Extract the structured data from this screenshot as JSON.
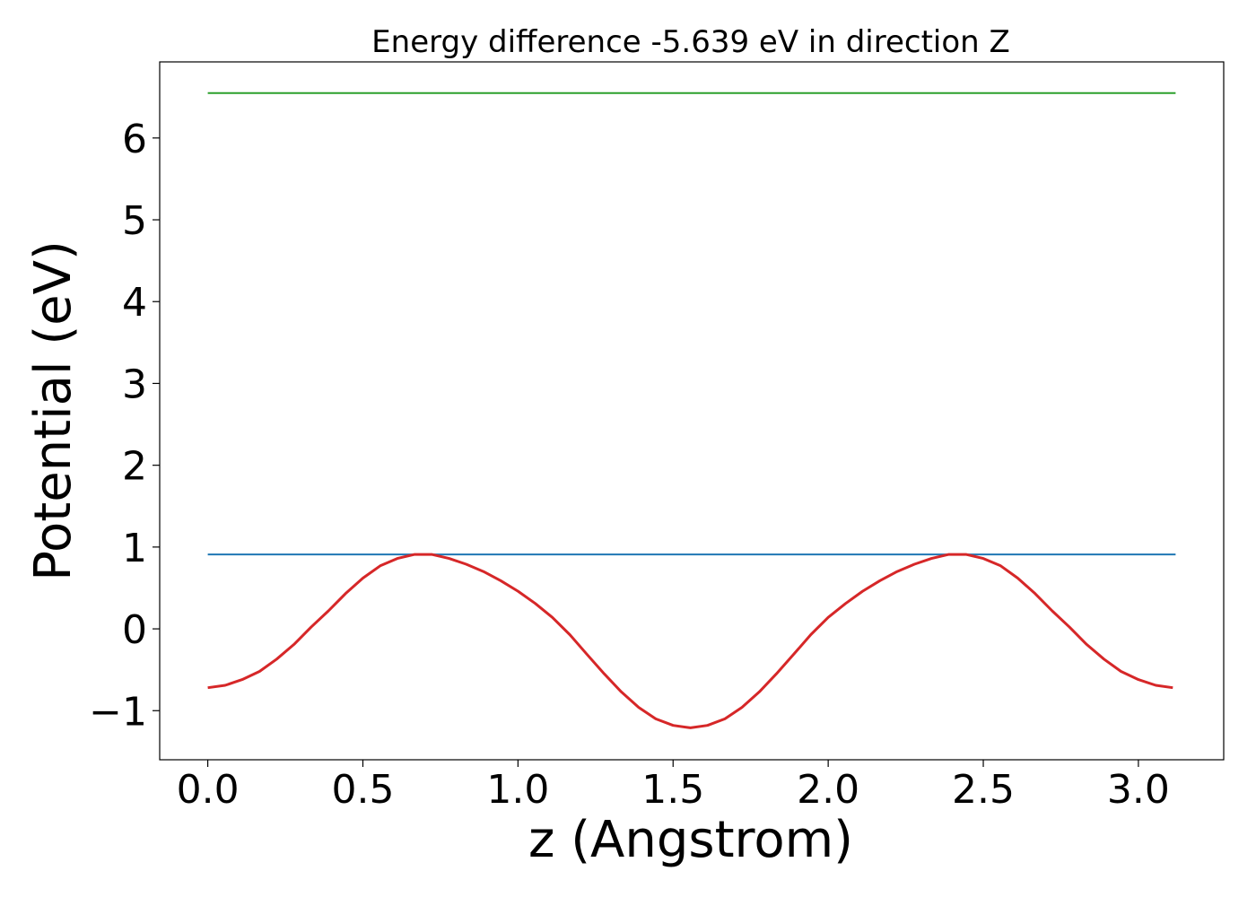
{
  "chart_data": {
    "type": "line",
    "title": "Energy difference -5.639 eV in direction Z",
    "xlabel": "z (Angstrom)",
    "ylabel": "Potential (eV)",
    "xlim": [
      -0.155,
      3.275
    ],
    "ylim": [
      -1.6,
      6.93
    ],
    "x_ticks": [
      0.0,
      0.5,
      1.0,
      1.5,
      2.0,
      2.5,
      3.0
    ],
    "x_tick_labels": [
      "0.0",
      "0.5",
      "1.0",
      "1.5",
      "2.0",
      "2.5",
      "3.0"
    ],
    "y_ticks": [
      -1,
      0,
      1,
      2,
      3,
      4,
      5,
      6
    ],
    "y_tick_labels": [
      "−1",
      "0",
      "1",
      "2",
      "3",
      "4",
      "5",
      "6"
    ],
    "grid": false,
    "series": [
      {
        "color": "#2ca02c",
        "x": [
          0.0,
          3.12
        ],
        "y": [
          6.55,
          6.55
        ]
      },
      {
        "color": "#1f77b4",
        "x": [
          0.0,
          3.12
        ],
        "y": [
          0.91,
          0.91
        ]
      },
      {
        "color": "#d62728",
        "x": [
          0.0,
          0.056,
          0.111,
          0.167,
          0.222,
          0.278,
          0.333,
          0.389,
          0.444,
          0.5,
          0.556,
          0.611,
          0.667,
          0.722,
          0.778,
          0.833,
          0.889,
          0.944,
          1.0,
          1.056,
          1.111,
          1.167,
          1.222,
          1.278,
          1.333,
          1.389,
          1.444,
          1.5,
          1.556,
          1.611,
          1.667,
          1.722,
          1.778,
          1.833,
          1.889,
          1.944,
          2.0,
          2.056,
          2.111,
          2.167,
          2.222,
          2.278,
          2.333,
          2.389,
          2.444,
          2.5,
          2.556,
          2.611,
          2.667,
          2.722,
          2.778,
          2.833,
          2.889,
          2.944,
          3.0,
          3.056,
          3.111
        ],
        "y": [
          -0.72,
          -0.69,
          -0.62,
          -0.52,
          -0.37,
          -0.19,
          0.02,
          0.22,
          0.43,
          0.62,
          0.77,
          0.86,
          0.91,
          0.91,
          0.86,
          0.79,
          0.7,
          0.59,
          0.46,
          0.31,
          0.14,
          -0.07,
          -0.31,
          -0.55,
          -0.77,
          -0.96,
          -1.1,
          -1.18,
          -1.21,
          -1.18,
          -1.1,
          -0.96,
          -0.77,
          -0.55,
          -0.31,
          -0.07,
          0.14,
          0.31,
          0.46,
          0.59,
          0.7,
          0.79,
          0.86,
          0.91,
          0.91,
          0.86,
          0.77,
          0.62,
          0.43,
          0.22,
          0.02,
          -0.19,
          -0.37,
          -0.52,
          -0.62,
          -0.69,
          -0.72
        ]
      }
    ]
  }
}
